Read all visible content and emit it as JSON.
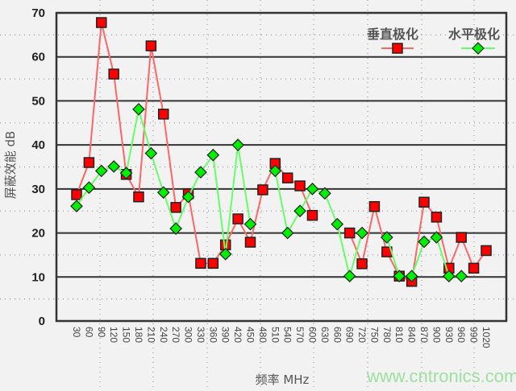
{
  "chart_data": {
    "type": "line",
    "title": "",
    "xlabel": "频率 MHz",
    "ylabel": "屏蔽效能 dB",
    "ylim": [
      0,
      70
    ],
    "yticks": [
      0,
      10,
      20,
      30,
      40,
      50,
      60,
      70
    ],
    "grid": true,
    "legend_position": "top-right",
    "categories": [
      "30",
      "60",
      "90",
      "120",
      "150",
      "180",
      "210",
      "240",
      "270",
      "300",
      "330",
      "360",
      "390",
      "420",
      "450",
      "480",
      "510",
      "540",
      "570",
      "600",
      "630",
      "660",
      "690",
      "720",
      "750",
      "780",
      "810",
      "840",
      "870",
      "900",
      "930",
      "960",
      "990",
      "1020"
    ],
    "series": [
      {
        "name": "垂直极化",
        "color": "#ff0000",
        "line_color": "#ff6666",
        "marker": "square",
        "values": [
          28.7,
          36,
          67.8,
          56.1,
          33.3,
          28.2,
          62.5,
          47,
          25.8,
          28.9,
          13.1,
          13.1,
          17.3,
          23.2,
          17.9,
          29.8,
          35.8,
          32.5,
          30.7,
          24,
          null,
          null,
          20,
          13,
          26,
          15.7,
          10.2,
          9,
          27,
          23.6,
          12,
          19,
          12,
          16
        ]
      },
      {
        "name": "水平极化",
        "color": "#00ee00",
        "line_color": "#66ff66",
        "marker": "diamond",
        "values": [
          26.1,
          30.3,
          34.1,
          35.1,
          33.6,
          48.1,
          38.1,
          29.2,
          21,
          28.2,
          33.8,
          37.7,
          15.2,
          40,
          22,
          null,
          34.1,
          20,
          25,
          30,
          29,
          22,
          10.2,
          20,
          null,
          19,
          10.2,
          10.2,
          18,
          19,
          10.2,
          10.2,
          null,
          null
        ]
      }
    ]
  },
  "watermark": "www.cntronics.com"
}
